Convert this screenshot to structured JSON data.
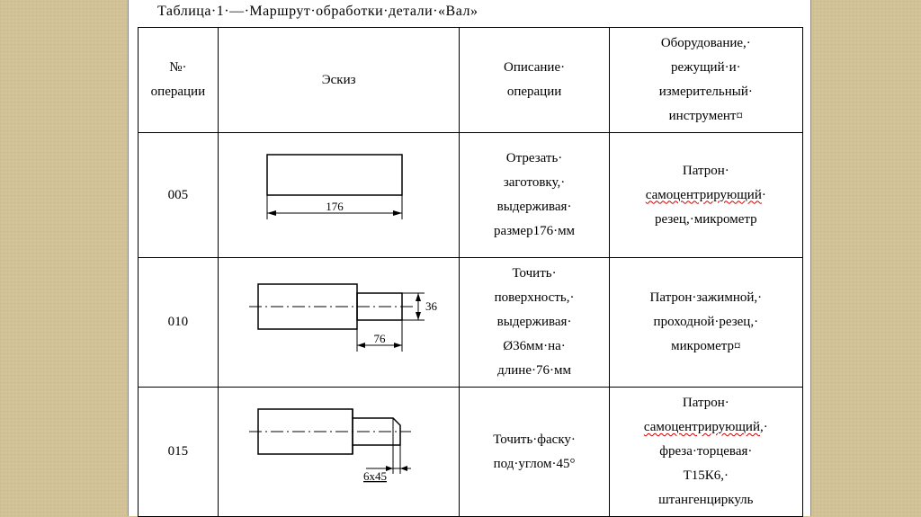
{
  "title": "Таблица·1·—·Маршрут·обработки·детали·«Вал»",
  "columns": {
    "op": "№·\nоперации",
    "sketch": "Эскиз",
    "desc": "Описание·\nоперации",
    "equip": "Оборудование,·\nрежущий·и·\nизмерительный·\nинструмент¤"
  },
  "rows": [
    {
      "op": "005",
      "desc": "Отрезать·\nзаготовку,·\nвыдерживая·\nразмер176·мм",
      "equip_pre": "Патрон·\n",
      "equip_red": "самоцентрирующий",
      "equip_post": "·\nрезец,·микрометр",
      "dim_len": "176"
    },
    {
      "op": "010",
      "desc": "Точить·\nповерхность,·\nвыдерживая·\nØ36мм·на·\nдлине·76·мм",
      "equip_pre": "Патрон·зажимной,·\nпроходной·резец,·\nмикрометр¤",
      "equip_red": "",
      "equip_post": "",
      "dim_d": "36",
      "dim_len": "76"
    },
    {
      "op": "015",
      "desc": "Точить·фаску·\nпод·углом·45°",
      "equip_pre": "Патрон·\n",
      "equip_red": "самоцентрирующий",
      "equip_post": ",·\nфреза·торцевая·\nТ15К6,·\nштангенциркуль",
      "dim_chamfer": "6x45"
    }
  ],
  "colors": {
    "stroke": "#000000",
    "bg": "#ffffff",
    "red": "#d00000"
  }
}
